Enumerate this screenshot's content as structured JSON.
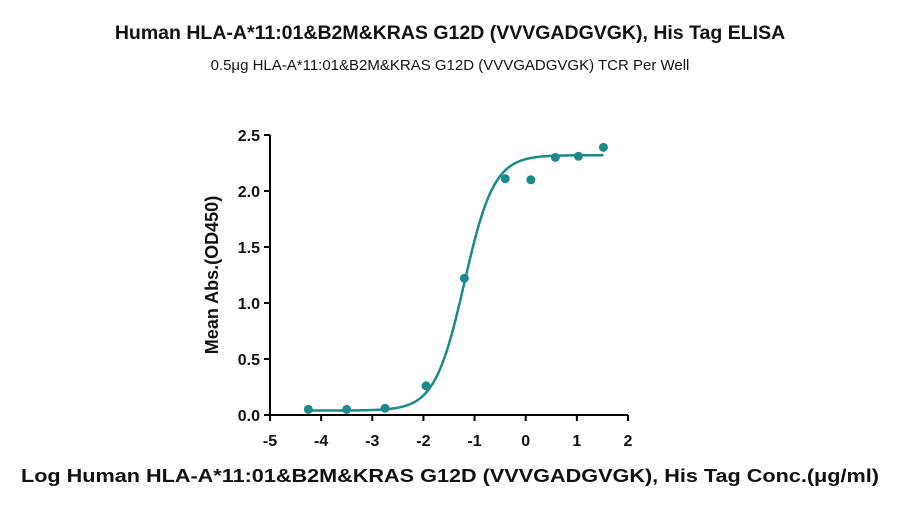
{
  "title": "Human HLA-A*11:01&B2M&KRAS G12D (VVVGADGVGK), His Tag ELISA",
  "subtitle": "0.5μg HLA-A*11:01&B2M&KRAS G12D (VVVGADGVGK) TCR Per Well",
  "colors": {
    "series": "#1a8a8a",
    "axis": "#000000",
    "text": "#111111"
  },
  "chart_data": {
    "type": "scatter",
    "title": "Human HLA-A*11:01&B2M&KRAS G12D (VVVGADGVGK), His Tag ELISA",
    "subtitle": "0.5μg HLA-A*11:01&B2M&KRAS G12D (VVVGADGVGK) TCR Per Well",
    "xlabel": "Log Human HLA-A*11:01&B2M&KRAS G12D (VVVGADGVGK), His Tag Conc.(μg/ml)",
    "ylabel": "Mean Abs.(OD450)",
    "xlim": [
      -5,
      2
    ],
    "ylim": [
      0,
      2.5
    ],
    "xticks": [
      -5,
      -4,
      -3,
      -2,
      -1,
      0,
      1,
      2
    ],
    "yticks": [
      0.0,
      0.5,
      1.0,
      1.5,
      2.0,
      2.5
    ],
    "xtick_labels": [
      "-5",
      "-4",
      "-3",
      "-2",
      "-1",
      "0",
      "1",
      "2"
    ],
    "ytick_labels": [
      "0.0",
      "0.5",
      "1.0",
      "1.5",
      "2.0",
      "2.5"
    ],
    "grid": false,
    "legend": "none",
    "points": {
      "x": [
        -4.25,
        -3.5,
        -2.75,
        -1.95,
        -1.2,
        -0.4,
        0.1,
        0.58,
        1.03,
        1.52
      ],
      "y": [
        0.05,
        0.05,
        0.06,
        0.26,
        1.22,
        2.11,
        2.1,
        2.3,
        2.31,
        2.39
      ]
    },
    "fit_curve": {
      "model": "4PL",
      "bottom": 0.04,
      "top": 2.32,
      "logEC50": -1.2,
      "hillslope": 1.5,
      "x_range": [
        -4.25,
        1.52
      ]
    }
  }
}
